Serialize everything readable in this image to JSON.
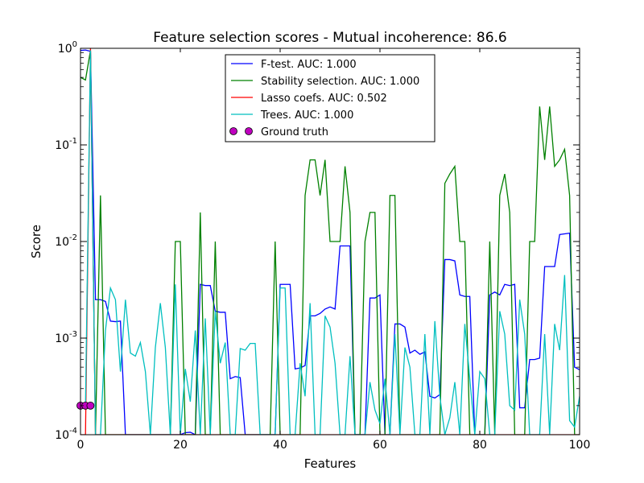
{
  "chart_data": {
    "type": "line",
    "title": "Feature selection scores - Mutual incoherence: 86.6",
    "xlabel": "Features",
    "ylabel": "Score",
    "xlim": [
      0,
      100
    ],
    "ylim": [
      0.0001,
      1
    ],
    "yscale": "log",
    "grid": false,
    "legend_position": "top-center",
    "x_ticks": [
      {
        "value": 0,
        "label": "0"
      },
      {
        "value": 20,
        "label": "20"
      },
      {
        "value": 40,
        "label": "40"
      },
      {
        "value": 60,
        "label": "60"
      },
      {
        "value": 80,
        "label": "80"
      },
      {
        "value": 100,
        "label": "100"
      }
    ],
    "y_ticks": [
      {
        "value": 0.0001,
        "base": "10",
        "exp": "-4"
      },
      {
        "value": 0.001,
        "base": "10",
        "exp": "-3"
      },
      {
        "value": 0.01,
        "base": "10",
        "exp": "-2"
      },
      {
        "value": 0.1,
        "base": "10",
        "exp": "-1"
      },
      {
        "value": 1,
        "base": "10",
        "exp": "0"
      }
    ],
    "series": [
      {
        "name": "F-test. AUC: 1.000",
        "color": "#0000ff",
        "points": [
          [
            0,
            0.95
          ],
          [
            1,
            0.96
          ],
          [
            2,
            0.93
          ],
          [
            3,
            0.0025
          ],
          [
            4,
            0.0025
          ],
          [
            5,
            0.0024
          ],
          [
            6,
            0.0015
          ],
          [
            7,
            0.00148
          ],
          [
            8,
            0.0015
          ],
          [
            9,
            0.0001
          ],
          [
            20,
            0.0001
          ],
          [
            21,
            0.000105
          ],
          [
            22,
            0.000106
          ],
          [
            23,
            0.0001
          ],
          [
            24,
            0.0036
          ],
          [
            25,
            0.0035
          ],
          [
            26,
            0.0035
          ],
          [
            27,
            0.0019
          ],
          [
            28,
            0.00185
          ],
          [
            29,
            0.00185
          ],
          [
            30,
            0.00038
          ],
          [
            31,
            0.0004
          ],
          [
            32,
            0.00039
          ],
          [
            33,
            0.0001
          ],
          [
            39,
            0.0001
          ],
          [
            40,
            0.0036
          ],
          [
            41,
            0.0036
          ],
          [
            42,
            0.0036
          ],
          [
            43,
            0.00048
          ],
          [
            44,
            0.00049
          ],
          [
            45,
            0.00052
          ],
          [
            46,
            0.0017
          ],
          [
            47,
            0.0017
          ],
          [
            48,
            0.0018
          ],
          [
            49,
            0.002
          ],
          [
            50,
            0.0021
          ],
          [
            51,
            0.002
          ],
          [
            52,
            0.009
          ],
          [
            53,
            0.009
          ],
          [
            54,
            0.009
          ],
          [
            55,
            0.0001
          ],
          [
            57,
            0.0001
          ],
          [
            58,
            0.0026
          ],
          [
            59,
            0.0026
          ],
          [
            60,
            0.0028
          ],
          [
            61,
            0.0001
          ],
          [
            62,
            0.0001
          ],
          [
            63,
            0.0014
          ],
          [
            64,
            0.0014
          ],
          [
            65,
            0.0013
          ],
          [
            66,
            0.0007
          ],
          [
            67,
            0.00075
          ],
          [
            68,
            0.00068
          ],
          [
            69,
            0.00072
          ],
          [
            70,
            0.00025
          ],
          [
            71,
            0.00024
          ],
          [
            72,
            0.00026
          ],
          [
            73,
            0.0065
          ],
          [
            74,
            0.0065
          ],
          [
            75,
            0.0063
          ],
          [
            76,
            0.0028
          ],
          [
            77,
            0.0027
          ],
          [
            78,
            0.0027
          ],
          [
            79,
            0.0001
          ],
          [
            81,
            0.0001
          ],
          [
            82,
            0.0028
          ],
          [
            83,
            0.003
          ],
          [
            84,
            0.0028
          ],
          [
            85,
            0.0036
          ],
          [
            86,
            0.0035
          ],
          [
            87,
            0.0036
          ],
          [
            88,
            0.00019
          ],
          [
            89,
            0.00019
          ],
          [
            90,
            0.0006
          ],
          [
            91,
            0.0006
          ],
          [
            92,
            0.00062
          ],
          [
            93,
            0.0055
          ],
          [
            94,
            0.0055
          ],
          [
            95,
            0.0055
          ],
          [
            96,
            0.0118
          ],
          [
            97,
            0.012
          ],
          [
            98,
            0.0122
          ],
          [
            99,
            0.0005
          ],
          [
            100,
            0.00047
          ]
        ]
      },
      {
        "name": "Stability selection. AUC: 1.000",
        "color": "#008000",
        "points": [
          [
            0,
            0.5
          ],
          [
            1,
            0.47
          ],
          [
            2,
            0.95
          ],
          [
            3,
            0.0001
          ],
          [
            4,
            0.03
          ],
          [
            5,
            0.0001
          ],
          [
            18,
            0.0001
          ],
          [
            19,
            0.01
          ],
          [
            20,
            0.01
          ],
          [
            21,
            0.0001
          ],
          [
            23,
            0.0001
          ],
          [
            24,
            0.02
          ],
          [
            25,
            0.0001
          ],
          [
            26,
            0.0001
          ],
          [
            27,
            0.01
          ],
          [
            28,
            0.0001
          ],
          [
            38,
            0.0001
          ],
          [
            39,
            0.01
          ],
          [
            40,
            0.0001
          ],
          [
            44,
            0.0001
          ],
          [
            45,
            0.03
          ],
          [
            46,
            0.07
          ],
          [
            47,
            0.07
          ],
          [
            48,
            0.03
          ],
          [
            49,
            0.07
          ],
          [
            50,
            0.01
          ],
          [
            51,
            0.01
          ],
          [
            52,
            0.01
          ],
          [
            53,
            0.06
          ],
          [
            54,
            0.02
          ],
          [
            55,
            0.0001
          ],
          [
            56,
            0.0001
          ],
          [
            57,
            0.01
          ],
          [
            58,
            0.02
          ],
          [
            59,
            0.02
          ],
          [
            60,
            0.0001
          ],
          [
            61,
            0.0001
          ],
          [
            62,
            0.03
          ],
          [
            63,
            0.03
          ],
          [
            64,
            0.0001
          ],
          [
            71,
            0.0001
          ],
          [
            72,
            0.0001
          ],
          [
            73,
            0.04
          ],
          [
            74,
            0.05
          ],
          [
            75,
            0.06
          ],
          [
            76,
            0.01
          ],
          [
            77,
            0.01
          ],
          [
            78,
            0.0001
          ],
          [
            79,
            0.0001
          ],
          [
            80,
            0.0001
          ],
          [
            81,
            0.0001
          ],
          [
            82,
            0.01
          ],
          [
            83,
            0.0001
          ],
          [
            84,
            0.03
          ],
          [
            85,
            0.05
          ],
          [
            86,
            0.02
          ],
          [
            87,
            0.0001
          ],
          [
            89,
            0.0001
          ],
          [
            90,
            0.01
          ],
          [
            91,
            0.01
          ],
          [
            92,
            0.25
          ],
          [
            93,
            0.07
          ],
          [
            94,
            0.25
          ],
          [
            95,
            0.06
          ],
          [
            96,
            0.07
          ],
          [
            97,
            0.09
          ],
          [
            98,
            0.03
          ],
          [
            99,
            0.0001
          ],
          [
            100,
            0.0001
          ]
        ]
      },
      {
        "name": "Lasso coefs. AUC: 0.502",
        "color": "#ff0000",
        "points": [
          [
            0,
            0.0001
          ],
          [
            1,
            0.0001
          ],
          [
            2,
            1.0
          ],
          [
            3,
            0.0001
          ],
          [
            100,
            0.0001
          ]
        ]
      },
      {
        "name": "Trees. AUC: 1.000",
        "color": "#00bfbf",
        "points": [
          [
            0,
            0.0002
          ],
          [
            1,
            0.0002
          ],
          [
            2,
            0.95
          ],
          [
            3,
            0.0001
          ],
          [
            4,
            0.0001
          ],
          [
            5,
            0.0012
          ],
          [
            6,
            0.0033
          ],
          [
            7,
            0.0025
          ],
          [
            8,
            0.00045
          ],
          [
            9,
            0.0025
          ],
          [
            10,
            0.0007
          ],
          [
            11,
            0.00065
          ],
          [
            12,
            0.0009
          ],
          [
            13,
            0.00045
          ],
          [
            14,
            0.0001
          ],
          [
            15,
            0.0008
          ],
          [
            16,
            0.0023
          ],
          [
            17,
            0.0008
          ],
          [
            18,
            0.0001
          ],
          [
            19,
            0.0036
          ],
          [
            20,
            0.0001
          ],
          [
            21,
            0.00048
          ],
          [
            22,
            0.00022
          ],
          [
            23,
            0.0012
          ],
          [
            24,
            0.0001
          ],
          [
            25,
            0.0016
          ],
          [
            26,
            0.0001
          ],
          [
            27,
            0.0019
          ],
          [
            28,
            0.00055
          ],
          [
            29,
            0.0009
          ],
          [
            30,
            0.0001
          ],
          [
            31,
            0.0001
          ],
          [
            32,
            0.00078
          ],
          [
            33,
            0.00075
          ],
          [
            34,
            0.00088
          ],
          [
            35,
            0.00088
          ],
          [
            36,
            0.0001
          ],
          [
            38,
            0.0001
          ],
          [
            39,
            0.0001
          ],
          [
            40,
            0.0033
          ],
          [
            41,
            0.0033
          ],
          [
            42,
            0.0001
          ],
          [
            43,
            0.0001
          ],
          [
            44,
            0.00055
          ],
          [
            45,
            0.00025
          ],
          [
            46,
            0.0023
          ],
          [
            47,
            0.0001
          ],
          [
            48,
            0.0001
          ],
          [
            49,
            0.0017
          ],
          [
            50,
            0.0013
          ],
          [
            51,
            0.00055
          ],
          [
            52,
            0.0001
          ],
          [
            53,
            0.0001
          ],
          [
            54,
            0.00065
          ],
          [
            55,
            0.0001
          ],
          [
            56,
            0.0001
          ],
          [
            57,
            0.0001
          ],
          [
            58,
            0.00035
          ],
          [
            59,
            0.00018
          ],
          [
            60,
            0.00013
          ],
          [
            61,
            0.00038
          ],
          [
            62,
            0.0001
          ],
          [
            63,
            0.0011
          ],
          [
            64,
            0.0001
          ],
          [
            65,
            0.0008
          ],
          [
            66,
            0.0005
          ],
          [
            67,
            0.0001
          ],
          [
            68,
            0.0001
          ],
          [
            69,
            0.0011
          ],
          [
            70,
            0.0001
          ],
          [
            71,
            0.0015
          ],
          [
            72,
            0.00025
          ],
          [
            73,
            0.0001
          ],
          [
            74,
            0.00015
          ],
          [
            75,
            0.00035
          ],
          [
            76,
            0.0001
          ],
          [
            77,
            0.0014
          ],
          [
            78,
            0.00038
          ],
          [
            79,
            0.0001
          ],
          [
            80,
            0.00045
          ],
          [
            81,
            0.00038
          ],
          [
            82,
            0.0001
          ],
          [
            83,
            0.0001
          ],
          [
            84,
            0.0019
          ],
          [
            85,
            0.0011
          ],
          [
            86,
            0.0002
          ],
          [
            87,
            0.00018
          ],
          [
            88,
            0.0025
          ],
          [
            89,
            0.0011
          ],
          [
            90,
            0.0001
          ],
          [
            91,
            0.0001
          ],
          [
            92,
            0.0001
          ],
          [
            93,
            0.0011
          ],
          [
            94,
            0.0001
          ],
          [
            95,
            0.0014
          ],
          [
            96,
            0.00075
          ],
          [
            97,
            0.0045
          ],
          [
            98,
            0.00014
          ],
          [
            99,
            0.00012
          ],
          [
            100,
            0.00025
          ]
        ]
      }
    ],
    "ground_truth": {
      "name": "Ground truth",
      "color": "#bf00bf",
      "points": [
        [
          0,
          0.0002
        ],
        [
          1,
          0.0002
        ],
        [
          2,
          0.0002
        ]
      ]
    }
  }
}
